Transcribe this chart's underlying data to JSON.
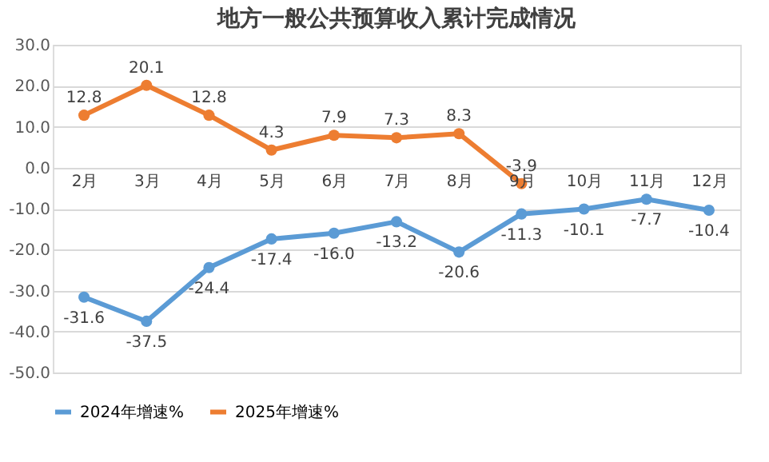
{
  "chart_data": {
    "type": "line",
    "title": "地方一般公共预算收入累计完成情况",
    "categories": [
      "2月",
      "3月",
      "4月",
      "5月",
      "6月",
      "7月",
      "8月",
      "9月",
      "10月",
      "11月",
      "12月"
    ],
    "series": [
      {
        "name": "2024年增速%",
        "color": "#5b9bd5",
        "values": [
          -31.6,
          -37.5,
          -24.4,
          -17.4,
          -16.0,
          -13.2,
          -20.6,
          -11.3,
          -10.1,
          -7.7,
          -10.4
        ],
        "value_labels": [
          "-31.6",
          "-37.5",
          "-24.4",
          "-17.4",
          "-16.0",
          "-13.2",
          "-20.6",
          "-11.3",
          "-10.1",
          "-7.7",
          "-10.4"
        ]
      },
      {
        "name": "2025年增速%",
        "color": "#ed7d31",
        "values": [
          12.8,
          20.1,
          12.8,
          4.3,
          7.9,
          7.3,
          8.3,
          -3.9,
          null,
          null,
          null
        ],
        "value_labels": [
          "12.8",
          "20.1",
          "12.8",
          "4.3",
          "7.9",
          "7.3",
          "8.3",
          "-3.9",
          null,
          null,
          null
        ]
      }
    ],
    "ylim": [
      -50,
      30
    ],
    "yticks": [
      {
        "value": -50,
        "label": "-50.0"
      },
      {
        "value": -40,
        "label": "-40.0"
      },
      {
        "value": -30,
        "label": "-30.0"
      },
      {
        "value": -20,
        "label": "-20.0"
      },
      {
        "value": -10,
        "label": "-10.0"
      },
      {
        "value": 0,
        "label": "0.0"
      },
      {
        "value": 10,
        "label": "10.0"
      },
      {
        "value": 20,
        "label": "20.0"
      },
      {
        "value": 30,
        "label": "30.0"
      }
    ],
    "grid": "y",
    "legend": "bottom",
    "data_labels": true,
    "marker": "circle",
    "line_style": "solid"
  }
}
